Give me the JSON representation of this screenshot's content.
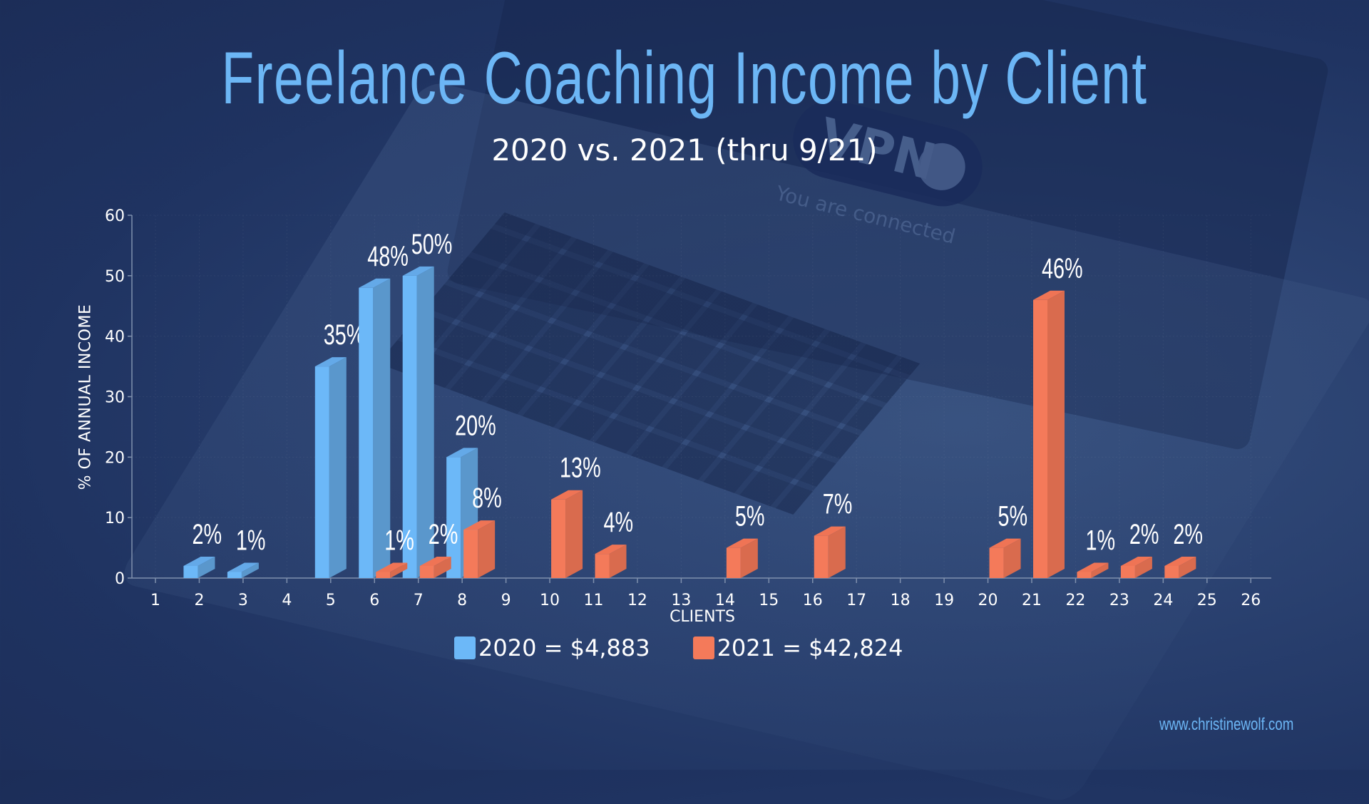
{
  "header": {
    "title": "Freelance Coaching Income by Client",
    "subtitle": "2020 vs. 2021 (thru 9/21)"
  },
  "background": {
    "vpn_label": "VPN",
    "vpn_status": "You are connected"
  },
  "legend": {
    "items": [
      {
        "label": "2020 = $4,883",
        "color": "#6cb8f8"
      },
      {
        "label": "2021 = $42,824",
        "color": "#f47a5a"
      }
    ]
  },
  "footer": {
    "website": "www.christinewolf.com"
  },
  "colors": {
    "title": "#6cb6f5",
    "background": "#1e3160",
    "series_2020_front": "#6cb8f8",
    "series_2020_side": "#5a97cc",
    "series_2021_front": "#f47a5a",
    "series_2021_side": "#d96b4e"
  },
  "chart_data": {
    "type": "bar",
    "title": "Freelance Coaching Income by Client",
    "subtitle": "2020 vs. 2021 (thru 9/21)",
    "xlabel": "CLIENTS",
    "ylabel": "% OF ANNUAL INCOME",
    "ylim": [
      0,
      60
    ],
    "yticks": [
      0,
      10,
      20,
      30,
      40,
      50,
      60
    ],
    "categories": [
      "1",
      "2",
      "3",
      "4",
      "5",
      "6",
      "7",
      "8",
      "9",
      "10",
      "11",
      "12",
      "13",
      "14",
      "15",
      "16",
      "17",
      "18",
      "19",
      "20",
      "21",
      "22",
      "23",
      "24",
      "25",
      "26"
    ],
    "series": [
      {
        "name": "2020 = $4,883",
        "values": [
          null,
          2,
          1,
          null,
          35,
          48,
          50,
          20,
          null,
          null,
          null,
          null,
          null,
          null,
          null,
          null,
          null,
          null,
          null,
          null,
          null,
          null,
          null,
          null,
          null,
          null
        ],
        "labels": [
          null,
          "2%",
          "1%",
          null,
          "35%",
          "48%",
          "50%",
          "20%",
          null,
          null,
          null,
          null,
          null,
          null,
          null,
          null,
          null,
          null,
          null,
          null,
          null,
          null,
          null,
          null,
          null,
          null
        ]
      },
      {
        "name": "2021 = $42,824",
        "values": [
          null,
          null,
          null,
          null,
          null,
          1,
          2,
          8,
          null,
          13,
          4,
          null,
          null,
          5,
          null,
          7,
          null,
          null,
          null,
          5,
          46,
          1,
          2,
          2,
          null,
          null
        ],
        "labels": [
          null,
          null,
          null,
          null,
          null,
          "1%",
          "2%",
          "8%",
          null,
          "13%",
          "4%",
          null,
          null,
          "5%",
          null,
          "7%",
          null,
          null,
          null,
          "5%",
          "46%",
          "1%",
          "2%",
          "2%",
          null,
          null
        ]
      }
    ],
    "grid": true,
    "legend_position": "bottom",
    "style": "3d-offset-bars"
  }
}
